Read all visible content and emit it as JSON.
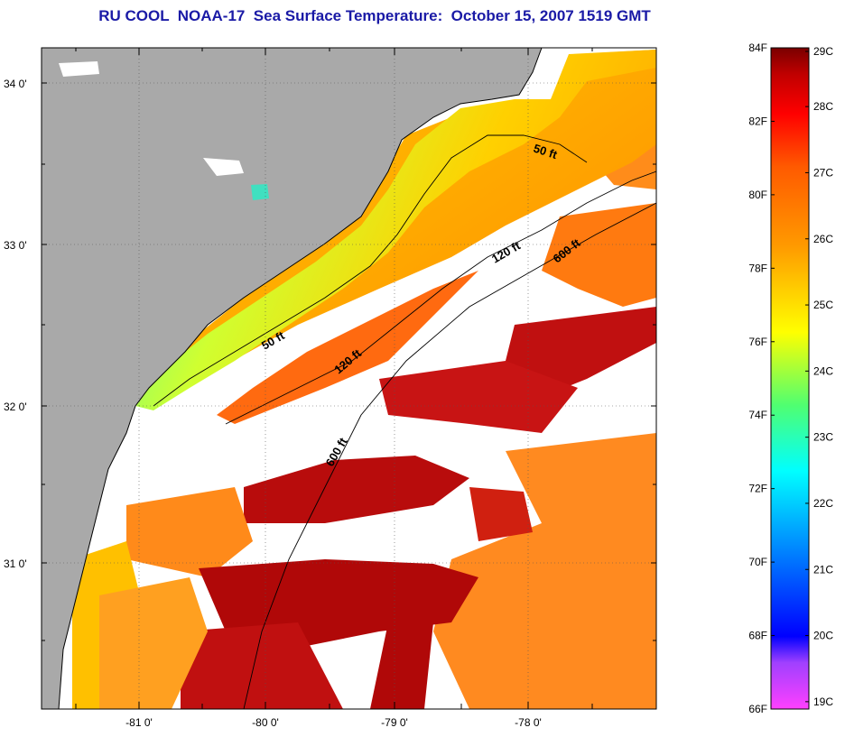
{
  "title": "RU COOL  NOAA-17  Sea Surface Temperature:  October 15, 2007 1519 GMT",
  "colors": {
    "land": "#a9a9a9",
    "no_data": "#ffffff"
  },
  "axes": {
    "lat_labels": [
      "34 0'",
      "33 0'",
      "32 0'",
      "31 0'"
    ],
    "lon_labels": [
      "-81 0'",
      "-80 0'",
      "-79 0'",
      "-78 0'"
    ]
  },
  "contours": [
    {
      "label": "50 ft",
      "id": "50a"
    },
    {
      "label": "50 ft",
      "id": "50b"
    },
    {
      "label": "120 ft",
      "id": "120a"
    },
    {
      "label": "120 ft",
      "id": "120b"
    },
    {
      "label": "600 ft",
      "id": "600a"
    },
    {
      "label": "600 ft",
      "id": "600b"
    }
  ],
  "colorbar": {
    "stops": [
      "#ff40ff",
      "#8040ff",
      "#0000ff",
      "#0080ff",
      "#00ffff",
      "#40ff80",
      "#ffff00",
      "#ffa000",
      "#ff6000",
      "#ff0000",
      "#c00000",
      "#800000"
    ],
    "f_labels": [
      "84F",
      "82F",
      "80F",
      "78F",
      "76F",
      "74F",
      "72F",
      "70F",
      "68F",
      "66F"
    ],
    "c_labels": [
      "29C",
      "28C",
      "27C",
      "26C",
      "25C",
      "24C",
      "23C",
      "22C",
      "21C",
      "20C",
      "19C"
    ]
  }
}
